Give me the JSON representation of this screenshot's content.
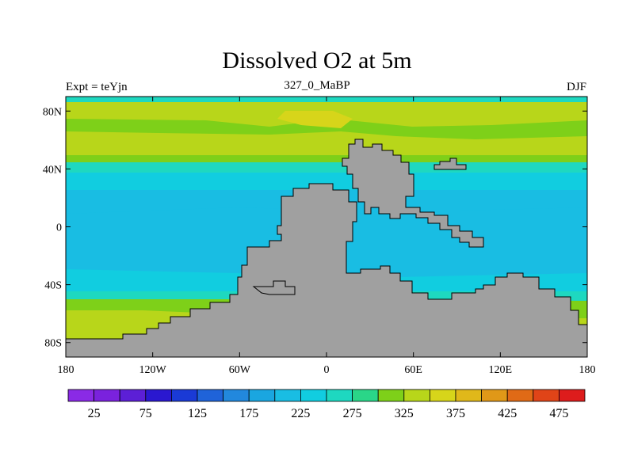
{
  "header": {
    "title": "Dissolved O2 at 5m",
    "left_label": "Expt = teYjn",
    "center_label": "327_0_MaBP",
    "right_label": "DJF"
  },
  "map": {
    "lat_ticks": [
      "80N",
      "40N",
      "0",
      "40S",
      "80S"
    ],
    "lon_ticks": [
      "180",
      "120W",
      "60W",
      "0",
      "60E",
      "120E",
      "180"
    ],
    "land_color": "#a0a0a0"
  },
  "colorbar": {
    "colors": [
      "#8a2ae6",
      "#7a22dd",
      "#5c1fd6",
      "#2a18d0",
      "#1a3ad6",
      "#1f63d9",
      "#2288dd",
      "#1aa6e0",
      "#19bde3",
      "#11cde0",
      "#1ed8c0",
      "#2ad688",
      "#7ed019",
      "#b8d61a",
      "#d7d51a",
      "#e0b81a",
      "#e09818",
      "#e06a16",
      "#e04418",
      "#dd1c1c"
    ],
    "labels": [
      "25",
      "75",
      "125",
      "175",
      "225",
      "275",
      "325",
      "375",
      "425",
      "475"
    ]
  },
  "colors": {
    "yellow_green": "#b8d61a",
    "green": "#7ed019",
    "teal": "#1ed8c0",
    "cyan": "#11cde0",
    "sky": "#19bde3",
    "orange": "#e09818",
    "red_orange": "#e06a16",
    "red": "#e04418"
  }
}
